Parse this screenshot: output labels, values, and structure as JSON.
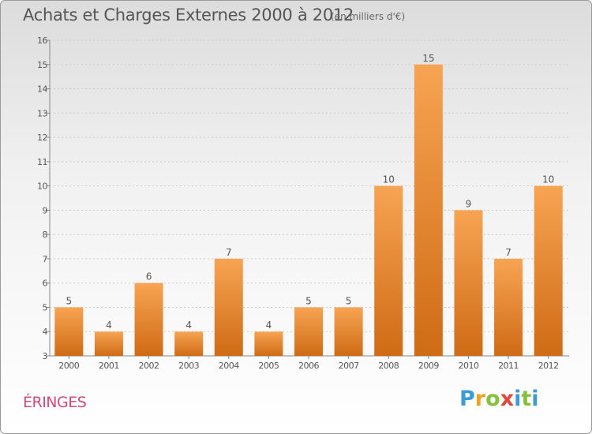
{
  "header": {
    "title": "Achats et Charges Externes 2000 à 2012",
    "unit": "(en milliers d'€)"
  },
  "footer": {
    "commune": "ÉRINGES",
    "logo": "Proxiti"
  },
  "colors": {
    "bar_top": "#f7a452",
    "bar_bottom": "#cf6b15",
    "title": "#555555",
    "commune": "#d24b7a"
  },
  "chart_data": {
    "type": "bar",
    "categories": [
      "2000",
      "2001",
      "2002",
      "2003",
      "2004",
      "2005",
      "2006",
      "2007",
      "2008",
      "2009",
      "2010",
      "2011",
      "2012"
    ],
    "values": [
      5,
      4,
      6,
      4,
      7,
      4,
      5,
      5,
      10,
      15,
      9,
      7,
      10
    ],
    "ylim": [
      3,
      16
    ],
    "yticks": [
      3,
      4,
      5,
      6,
      7,
      8,
      9,
      10,
      11,
      12,
      13,
      14,
      15,
      16
    ],
    "grid": true,
    "data_labels": true
  }
}
